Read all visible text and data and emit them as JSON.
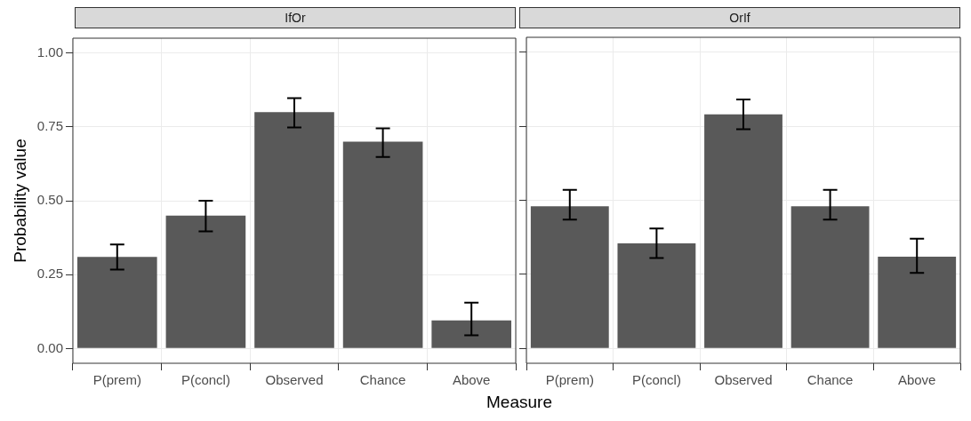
{
  "chart_data": [
    {
      "type": "bar",
      "title": "IfOr",
      "xlabel": "Measure",
      "ylabel": "Probability value",
      "categories": [
        "P(prem)",
        "P(concl)",
        "Observed",
        "Chance",
        "Above"
      ],
      "series": [
        {
          "color": "#595959",
          "values": [
            0.31,
            0.45,
            0.8,
            0.7,
            0.095
          ],
          "errors": [
            [
              0.267,
              0.352
            ],
            [
              0.396,
              0.5
            ],
            [
              0.748,
              0.847
            ],
            [
              0.648,
              0.745
            ],
            [
              0.045,
              0.155
            ]
          ]
        }
      ],
      "ylim": [
        -0.05,
        1.05
      ],
      "yticks": [
        {
          "value": 0,
          "label": "0.00"
        },
        {
          "value": 0.25,
          "label": "0.25"
        },
        {
          "value": 0.5,
          "label": "0.50"
        },
        {
          "value": 0.75,
          "label": "0.75"
        },
        {
          "value": 1,
          "label": "1.00"
        }
      ],
      "grid": true
    },
    {
      "type": "bar",
      "title": "OrIf",
      "categories": [
        "P(prem)",
        "P(concl)",
        "Observed",
        "Chance",
        "Above"
      ],
      "series": [
        {
          "color": "#595959",
          "values": [
            0.48,
            0.355,
            0.79,
            0.48,
            0.31
          ],
          "errors": [
            [
              0.435,
              0.535
            ],
            [
              0.305,
              0.405
            ],
            [
              0.74,
              0.84
            ],
            [
              0.435,
              0.535
            ],
            [
              0.255,
              0.37
            ]
          ]
        }
      ],
      "ylim": [
        -0.05,
        1.05
      ],
      "yticks": [
        {
          "value": 0,
          "label": null
        },
        {
          "value": 0.25,
          "label": null
        },
        {
          "value": 0.5,
          "label": null
        },
        {
          "value": 0.75,
          "label": null
        },
        {
          "value": 1,
          "label": null
        }
      ],
      "grid": true,
      "tick_labels": "x"
    }
  ]
}
